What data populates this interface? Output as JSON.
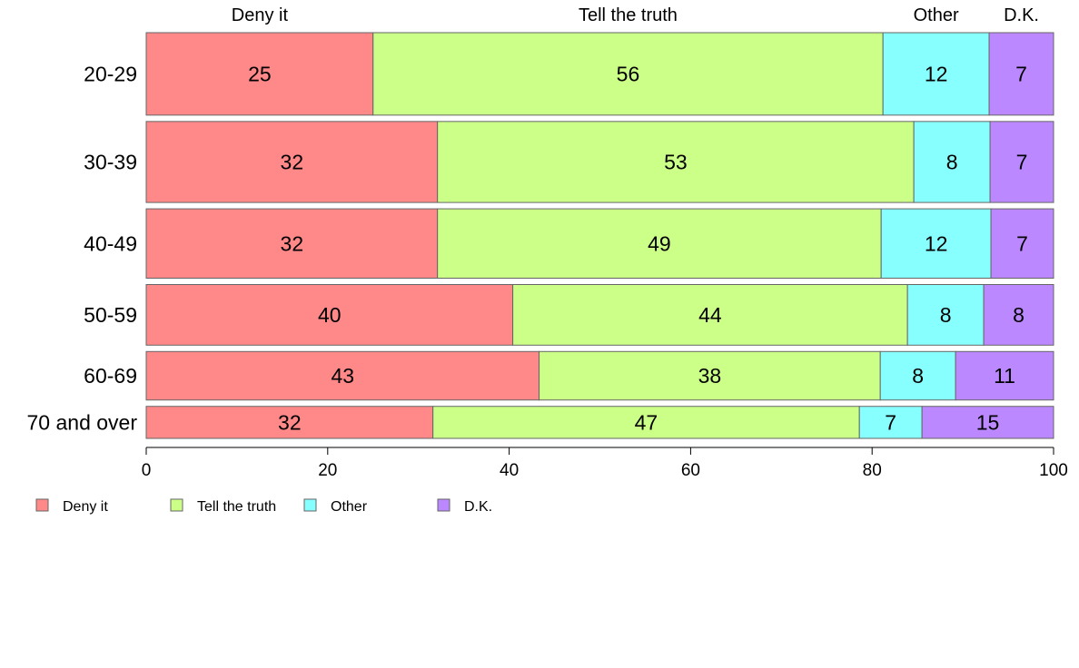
{
  "chart_data": {
    "type": "bar",
    "orientation": "horizontal",
    "stacked": true,
    "categories": [
      "20-29",
      "30-39",
      "40-49",
      "50-59",
      "60-69",
      "70 and over"
    ],
    "series": [
      {
        "name": "Deny it",
        "color": "#ff8888",
        "values": [
          25,
          32,
          32,
          40,
          43,
          32
        ]
      },
      {
        "name": "Tell the truth",
        "color": "#ccff88",
        "values": [
          56,
          53,
          49,
          44,
          38,
          47
        ]
      },
      {
        "name": "Other",
        "color": "#88ffff",
        "values": [
          12,
          8,
          12,
          8,
          8,
          7
        ]
      },
      {
        "name": "D.K.",
        "color": "#bb88ff",
        "values": [
          7,
          7,
          7,
          8,
          11,
          15
        ]
      }
    ],
    "segment_extents": [
      [
        25,
        81.2,
        92.9,
        100
      ],
      [
        32.1,
        84.6,
        93,
        100
      ],
      [
        32.1,
        81,
        93.1,
        100
      ],
      [
        40.4,
        83.9,
        92.3,
        100
      ],
      [
        43.3,
        80.9,
        89.2,
        100
      ],
      [
        31.6,
        78.6,
        85.5,
        100
      ]
    ],
    "row_weights": [
      0.17,
      0.167,
      0.143,
      0.125,
      0.1,
      0.066
    ],
    "column_headers": [
      "Deny it",
      "Tell the truth",
      "Other",
      "D.K."
    ],
    "x_ticks": [
      "0",
      "20",
      "40",
      "60",
      "80",
      "100"
    ],
    "xlim": [
      0,
      100
    ],
    "grid": false,
    "legend": {
      "position": "bottom-left",
      "labels": [
        "Deny it",
        "Tell the truth",
        "Other",
        "D.K."
      ]
    }
  }
}
